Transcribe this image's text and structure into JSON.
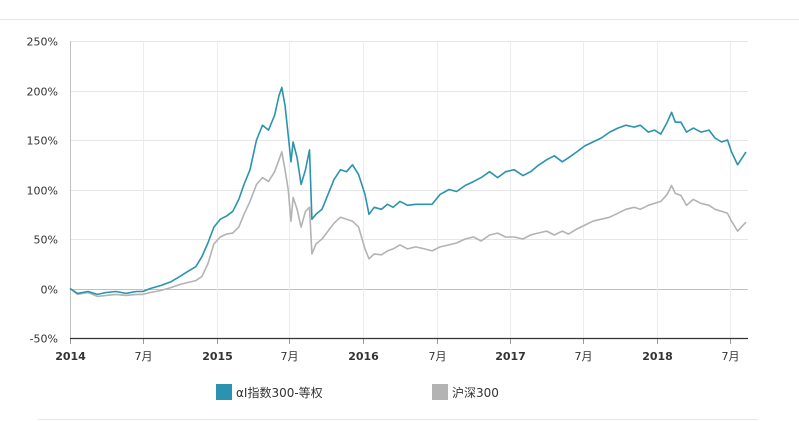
{
  "chart_data": {
    "type": "line",
    "y_unit": "%",
    "ylim": [
      -50,
      250
    ],
    "yticks": [
      -50,
      0,
      50,
      100,
      150,
      200,
      250
    ],
    "yticks_labels": [
      "-50%",
      "0%",
      "50%",
      "100%",
      "150%",
      "200%",
      "250%"
    ],
    "xlim": [
      "2014-01-01",
      "2018-08-15"
    ],
    "xticks": [
      {
        "date": "2014-01-01",
        "label": "2014",
        "bold": true
      },
      {
        "date": "2014-07-01",
        "label": "7月",
        "bold": false
      },
      {
        "date": "2015-01-01",
        "label": "2015",
        "bold": true
      },
      {
        "date": "2015-07-01",
        "label": "7月",
        "bold": false
      },
      {
        "date": "2016-01-01",
        "label": "2016",
        "bold": true
      },
      {
        "date": "2016-07-01",
        "label": "7月",
        "bold": false
      },
      {
        "date": "2017-01-01",
        "label": "2017",
        "bold": true
      },
      {
        "date": "2017-07-01",
        "label": "7月",
        "bold": false
      },
      {
        "date": "2018-01-01",
        "label": "2018",
        "bold": true
      },
      {
        "date": "2018-07-01",
        "label": "7月",
        "bold": false
      }
    ],
    "grid": true,
    "legend_position": "bottom",
    "series": [
      {
        "name": "αI指数300-等权",
        "color": "#2a93ad",
        "x": [
          "2014-01-01",
          "2014-01-20",
          "2014-02-15",
          "2014-03-10",
          "2014-04-01",
          "2014-04-25",
          "2014-05-20",
          "2014-06-15",
          "2014-07-01",
          "2014-07-20",
          "2014-08-15",
          "2014-09-10",
          "2014-10-01",
          "2014-10-20",
          "2014-11-10",
          "2014-11-25",
          "2014-12-10",
          "2014-12-25",
          "2015-01-10",
          "2015-01-25",
          "2015-02-10",
          "2015-02-25",
          "2015-03-10",
          "2015-03-25",
          "2015-04-10",
          "2015-04-25",
          "2015-05-10",
          "2015-05-25",
          "2015-06-05",
          "2015-06-12",
          "2015-06-20",
          "2015-06-28",
          "2015-07-05",
          "2015-07-10",
          "2015-07-20",
          "2015-07-30",
          "2015-08-10",
          "2015-08-20",
          "2015-08-26",
          "2015-09-05",
          "2015-09-20",
          "2015-10-05",
          "2015-10-20",
          "2015-11-05",
          "2015-11-20",
          "2015-12-05",
          "2015-12-20",
          "2016-01-05",
          "2016-01-15",
          "2016-01-28",
          "2016-02-15",
          "2016-03-01",
          "2016-03-15",
          "2016-04-01",
          "2016-04-20",
          "2016-05-10",
          "2016-06-01",
          "2016-06-20",
          "2016-07-10",
          "2016-08-01",
          "2016-08-20",
          "2016-09-10",
          "2016-10-01",
          "2016-10-20",
          "2016-11-10",
          "2016-11-30",
          "2016-12-20",
          "2017-01-10",
          "2017-02-01",
          "2017-02-20",
          "2017-03-10",
          "2017-04-01",
          "2017-04-20",
          "2017-05-10",
          "2017-05-25",
          "2017-06-15",
          "2017-07-05",
          "2017-07-25",
          "2017-08-15",
          "2017-09-05",
          "2017-09-25",
          "2017-10-15",
          "2017-11-05",
          "2017-11-20",
          "2017-12-10",
          "2017-12-25",
          "2018-01-10",
          "2018-01-26",
          "2018-02-06",
          "2018-02-15",
          "2018-03-01",
          "2018-03-15",
          "2018-04-01",
          "2018-04-20",
          "2018-05-10",
          "2018-05-25",
          "2018-06-10",
          "2018-06-25",
          "2018-07-05",
          "2018-07-20",
          "2018-08-10"
        ],
        "values": [
          0,
          -5,
          -3,
          -6,
          -4,
          -3,
          -5,
          -3,
          -3,
          0,
          3,
          7,
          12,
          17,
          22,
          32,
          46,
          62,
          70,
          73,
          78,
          90,
          105,
          120,
          150,
          165,
          160,
          175,
          195,
          203,
          185,
          155,
          128,
          148,
          132,
          105,
          120,
          140,
          70,
          75,
          80,
          95,
          110,
          120,
          118,
          125,
          115,
          95,
          75,
          82,
          80,
          85,
          82,
          88,
          84,
          85,
          85,
          85,
          95,
          100,
          98,
          104,
          108,
          112,
          118,
          112,
          118,
          120,
          114,
          118,
          124,
          130,
          134,
          128,
          132,
          138,
          144,
          148,
          152,
          158,
          162,
          165,
          163,
          165,
          158,
          160,
          156,
          168,
          178,
          168,
          168,
          158,
          162,
          158,
          160,
          152,
          148,
          150,
          138,
          125,
          138
        ]
      },
      {
        "name": "沪深300",
        "color": "#b3b3b3",
        "x": [
          "2014-01-01",
          "2014-01-20",
          "2014-02-15",
          "2014-03-10",
          "2014-04-01",
          "2014-04-25",
          "2014-05-20",
          "2014-06-15",
          "2014-07-01",
          "2014-07-20",
          "2014-08-15",
          "2014-09-10",
          "2014-10-01",
          "2014-10-20",
          "2014-11-10",
          "2014-11-25",
          "2014-12-10",
          "2014-12-25",
          "2015-01-10",
          "2015-01-25",
          "2015-02-10",
          "2015-02-25",
          "2015-03-10",
          "2015-03-25",
          "2015-04-10",
          "2015-04-25",
          "2015-05-10",
          "2015-05-25",
          "2015-06-05",
          "2015-06-12",
          "2015-06-20",
          "2015-06-28",
          "2015-07-05",
          "2015-07-10",
          "2015-07-20",
          "2015-07-30",
          "2015-08-10",
          "2015-08-20",
          "2015-08-26",
          "2015-09-05",
          "2015-09-20",
          "2015-10-05",
          "2015-10-20",
          "2015-11-05",
          "2015-11-20",
          "2015-12-05",
          "2015-12-20",
          "2016-01-05",
          "2016-01-15",
          "2016-01-28",
          "2016-02-15",
          "2016-03-01",
          "2016-03-15",
          "2016-04-01",
          "2016-04-20",
          "2016-05-10",
          "2016-06-01",
          "2016-06-20",
          "2016-07-10",
          "2016-08-01",
          "2016-08-20",
          "2016-09-10",
          "2016-10-01",
          "2016-10-20",
          "2016-11-10",
          "2016-11-30",
          "2016-12-20",
          "2017-01-10",
          "2017-02-01",
          "2017-02-20",
          "2017-03-10",
          "2017-04-01",
          "2017-04-20",
          "2017-05-10",
          "2017-05-25",
          "2017-06-15",
          "2017-07-05",
          "2017-07-25",
          "2017-08-15",
          "2017-09-05",
          "2017-09-25",
          "2017-10-15",
          "2017-11-05",
          "2017-11-20",
          "2017-12-10",
          "2017-12-25",
          "2018-01-10",
          "2018-01-26",
          "2018-02-06",
          "2018-02-15",
          "2018-03-01",
          "2018-03-15",
          "2018-04-01",
          "2018-04-20",
          "2018-05-10",
          "2018-05-25",
          "2018-06-10",
          "2018-06-25",
          "2018-07-05",
          "2018-07-20",
          "2018-08-10"
        ],
        "values": [
          0,
          -6,
          -4,
          -8,
          -7,
          -6,
          -7,
          -6,
          -6,
          -4,
          -2,
          1,
          4,
          6,
          8,
          12,
          25,
          45,
          52,
          55,
          56,
          62,
          75,
          88,
          105,
          112,
          108,
          118,
          130,
          138,
          120,
          100,
          68,
          92,
          80,
          62,
          78,
          82,
          35,
          45,
          50,
          58,
          66,
          72,
          70,
          68,
          62,
          40,
          30,
          35,
          34,
          38,
          40,
          44,
          40,
          42,
          40,
          38,
          42,
          44,
          46,
          50,
          52,
          48,
          54,
          56,
          52,
          52,
          50,
          54,
          56,
          58,
          54,
          58,
          55,
          60,
          64,
          68,
          70,
          72,
          76,
          80,
          82,
          80,
          84,
          86,
          88,
          95,
          104,
          96,
          94,
          84,
          90,
          86,
          84,
          80,
          78,
          76,
          68,
          58,
          67
        ]
      }
    ]
  }
}
